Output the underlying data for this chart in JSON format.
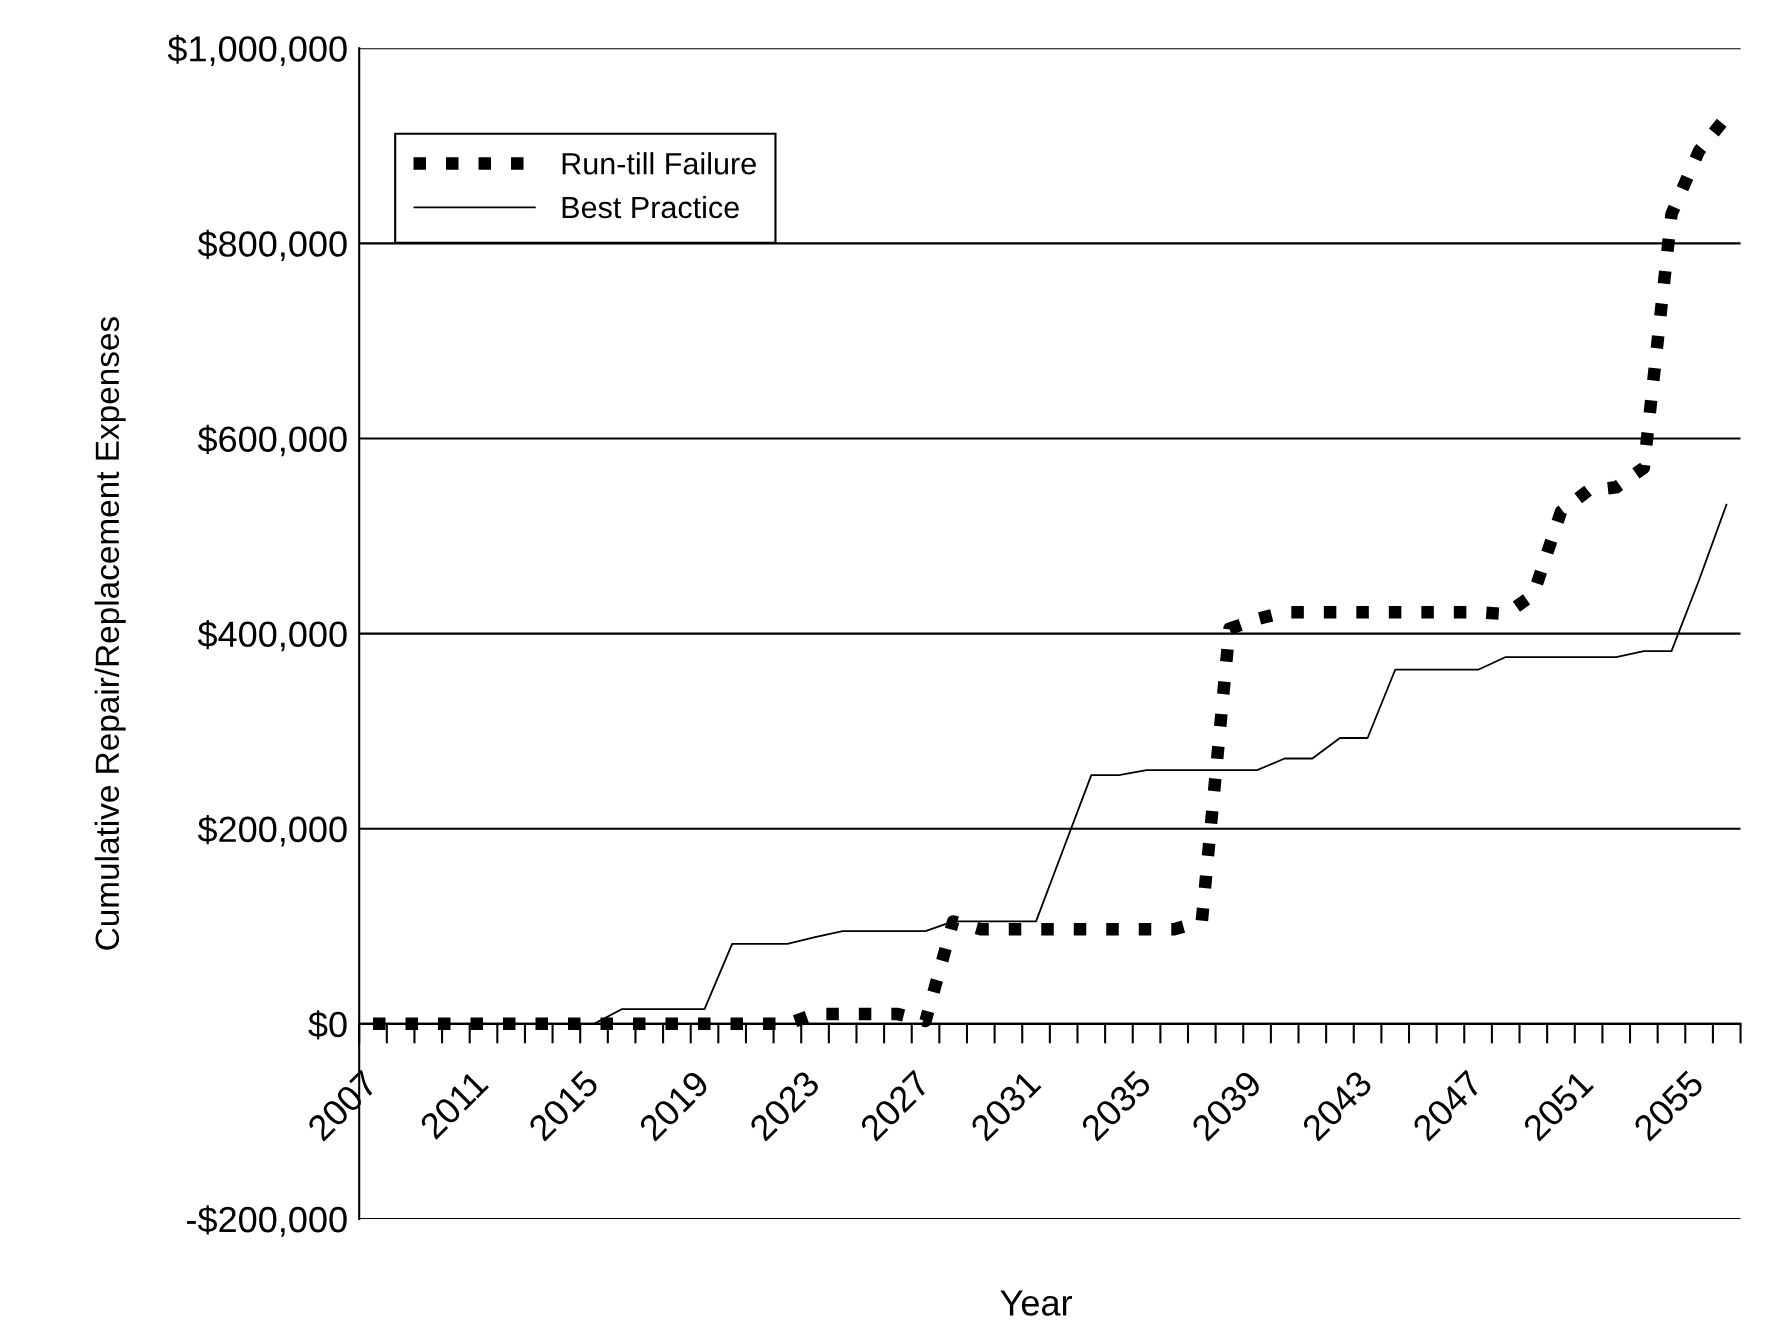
{
  "chart_data": {
    "type": "line",
    "xlabel": "Year",
    "ylabel": "Cumulative Repair/Replacement Expenses",
    "categories": [
      "2007",
      null,
      null,
      null,
      "2011",
      null,
      null,
      null,
      "2015",
      null,
      null,
      null,
      "2019",
      null,
      null,
      null,
      "2023",
      null,
      null,
      null,
      "2027",
      null,
      null,
      null,
      "2031",
      null,
      null,
      null,
      "2035",
      null,
      null,
      null,
      "2039",
      null,
      null,
      null,
      "2043",
      null,
      null,
      null,
      "2047",
      null,
      null,
      null,
      "2051",
      null,
      null,
      null,
      "2055",
      null
    ],
    "series": [
      {
        "name": "Run-till Failure",
        "color": "#000000",
        "line_style": "dashed",
        "values": [
          0,
          0,
          0,
          0,
          0,
          0,
          0,
          0,
          0,
          0,
          0,
          0,
          0,
          0,
          0,
          0,
          10000,
          10000,
          10000,
          10000,
          3000,
          105000,
          97000,
          97000,
          97000,
          97000,
          97000,
          97000,
          97000,
          97000,
          105000,
          405000,
          415000,
          422000,
          422000,
          422000,
          422000,
          422000,
          422000,
          422000,
          422000,
          420000,
          440000,
          525000,
          547000,
          550000,
          570000,
          830000,
          895000,
          930000
        ]
      },
      {
        "name": "Best Practice",
        "color": "#000000",
        "line_style": "solid",
        "values": [
          0,
          0,
          0,
          0,
          0,
          0,
          0,
          0,
          0,
          15000,
          15000,
          15000,
          15000,
          82000,
          82000,
          82000,
          89000,
          95000,
          95000,
          95000,
          95000,
          105000,
          105000,
          105000,
          105000,
          180000,
          255000,
          255000,
          260000,
          260000,
          260000,
          260000,
          260000,
          272000,
          272000,
          293000,
          293000,
          363000,
          363000,
          363000,
          363000,
          376000,
          376000,
          376000,
          376000,
          376000,
          382000,
          382000,
          455000,
          533000
        ]
      }
    ],
    "ylim": [
      -200000,
      1000000
    ],
    "yticks": [
      {
        "value": -200000,
        "label": "-$200,000"
      },
      {
        "value": 0,
        "label": "$0"
      },
      {
        "value": 200000,
        "label": "$200,000"
      },
      {
        "value": 400000,
        "label": "$400,000"
      },
      {
        "value": 600000,
        "label": "$600,000"
      },
      {
        "value": 800000,
        "label": "$800,000"
      },
      {
        "value": 1000000,
        "label": "$1,000,000"
      }
    ],
    "grid": "y",
    "legend": "top left"
  }
}
